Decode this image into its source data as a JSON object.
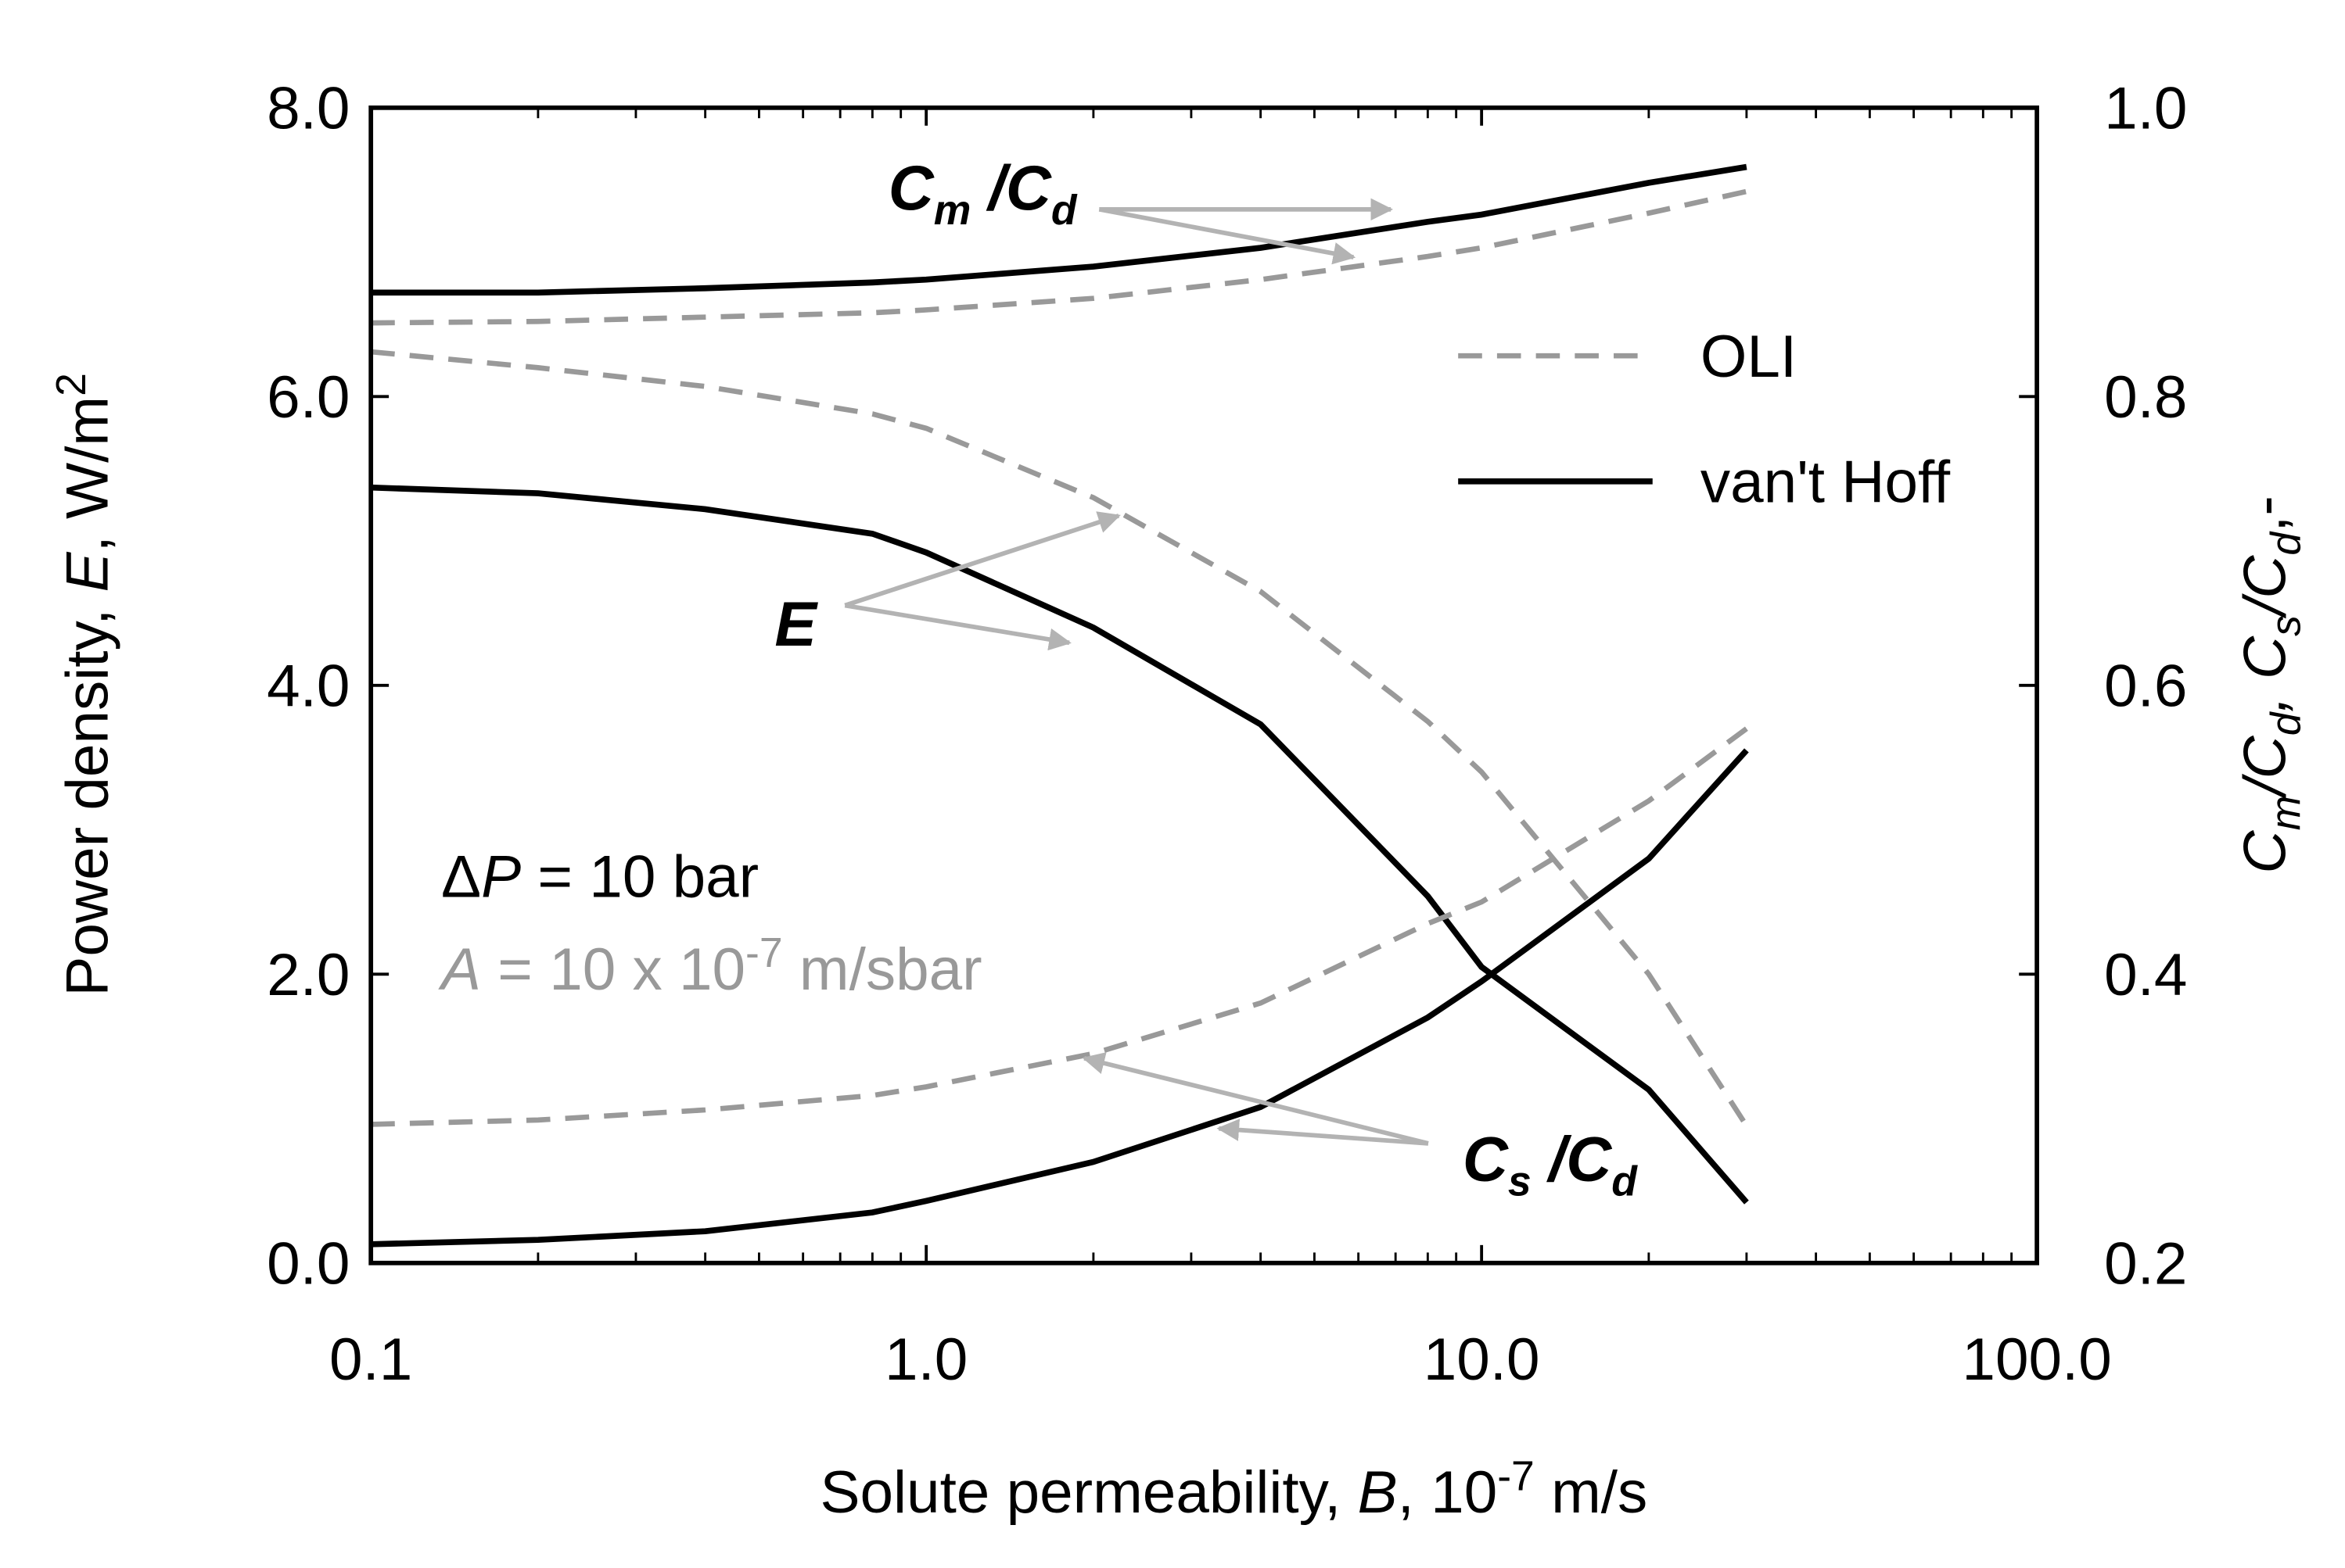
{
  "chart_data": {
    "type": "line",
    "x": [
      0.1,
      0.2,
      0.4,
      0.8,
      1,
      2,
      4,
      8,
      10,
      20,
      30
    ],
    "log_x": true,
    "xlim": [
      0.1,
      100
    ],
    "xticks": [
      0.1,
      {
        "value": 1,
        "label": "1.0"
      },
      {
        "value": 10,
        "label": "10.0"
      },
      {
        "value": 100,
        "label": "100.0"
      }
    ],
    "ylim": [
      0,
      8
    ],
    "yticks": [
      {
        "value": 0,
        "label": "0.0"
      },
      {
        "value": 2,
        "label": "2.0"
      },
      {
        "value": 4,
        "label": "4.0"
      },
      {
        "value": 6,
        "label": "6.0"
      },
      {
        "value": 8,
        "label": "8.0"
      }
    ],
    "y2lim": [
      0.2,
      1
    ],
    "y2ticks": [
      0.2,
      0.4,
      0.6,
      0.8,
      {
        "value": 1,
        "label": "1.0"
      }
    ],
    "x_label": [
      "Solute permeability, ",
      "B",
      ", 10",
      "-7",
      " m/s"
    ],
    "y_label": [
      "Power density, ",
      "E",
      ", W/m",
      "2"
    ],
    "y2_label": [
      "C",
      "m",
      "/C",
      "d",
      ", C",
      "s",
      "/C",
      "d",
      ",-"
    ],
    "series": [
      {
        "name": "OLI",
        "color": "#999999",
        "dashed": true,
        "values": [
          6.31,
          6.2,
          6.07,
          5.88,
          5.78,
          5.3,
          4.65,
          3.75,
          3.4,
          2.0,
          0.95
        ]
      },
      {
        "name": "van't Hoff",
        "color": "#000000",
        "dashed": false,
        "values": [
          5.37,
          5.33,
          5.22,
          5.05,
          4.92,
          4.4,
          3.73,
          2.54,
          2.05,
          1.2,
          0.42
        ]
      },
      {
        "name": "OLI",
        "color": "#999999",
        "dashed": true,
        "axis": "y2",
        "values": [
          0.851,
          0.852,
          0.855,
          0.858,
          0.86,
          0.868,
          0.881,
          0.897,
          0.903,
          0.927,
          0.942
        ]
      },
      {
        "name": "van't Hoff",
        "color": "#000000",
        "dashed": false,
        "axis": "y2",
        "values": [
          0.872,
          0.872,
          0.875,
          0.879,
          0.881,
          0.89,
          0.903,
          0.921,
          0.926,
          0.948,
          0.959
        ]
      },
      {
        "name": "OLI",
        "color": "#999999",
        "dashed": true,
        "axis": "y2",
        "values": [
          0.296,
          0.299,
          0.306,
          0.316,
          0.322,
          0.345,
          0.38,
          0.435,
          0.45,
          0.52,
          0.57
        ]
      },
      {
        "name": "van't Hoff",
        "color": "#000000",
        "dashed": false,
        "axis": "y2",
        "values": [
          0.213,
          0.216,
          0.222,
          0.235,
          0.243,
          0.27,
          0.308,
          0.37,
          0.395,
          0.48,
          0.555
        ]
      }
    ],
    "annotations": {
      "cm_label": [
        "C",
        "m",
        " /C",
        "d"
      ],
      "e_label": "E",
      "cs_label": [
        "C",
        "s",
        " /C",
        "d"
      ],
      "pressure": [
        "Δ",
        "P",
        " = 10 bar"
      ],
      "permeability": [
        "A",
        " = 10 x 10",
        "-7",
        " m/sbar"
      ]
    }
  }
}
